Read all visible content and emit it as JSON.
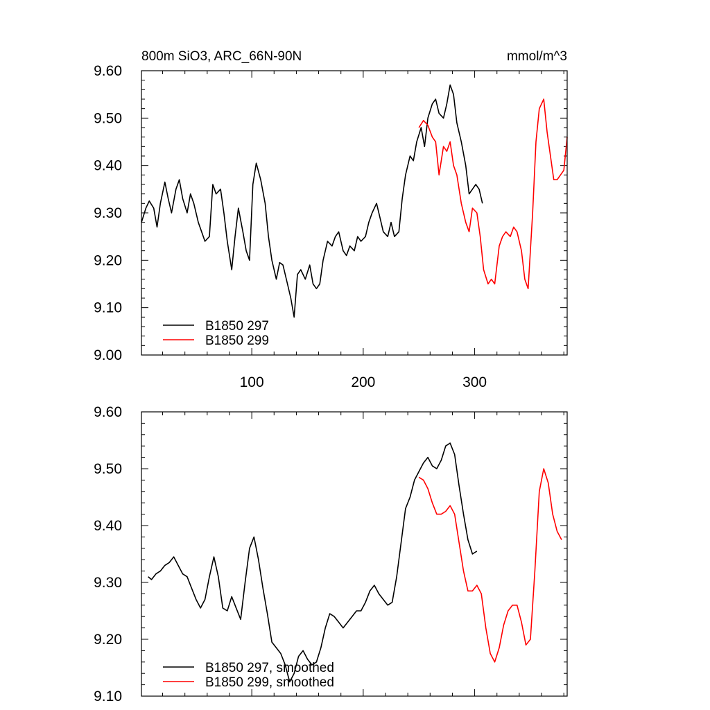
{
  "chart_data": [
    {
      "type": "line",
      "title": "800m SiO3, ARC_66N-90N",
      "units": "mmol/m^3",
      "xlim": [
        1,
        383
      ],
      "ylim": [
        9.0,
        9.6
      ],
      "x_ticks": [
        100,
        200,
        300
      ],
      "y_ticks": [
        "9.00",
        "9.10",
        "9.20",
        "9.30",
        "9.40",
        "9.50",
        "9.60"
      ],
      "legend_position": "bottom-left",
      "series": [
        {
          "name": "B1850 297",
          "color": "#000000",
          "x": [
            1,
            5,
            8,
            12,
            15,
            18,
            22,
            25,
            28,
            32,
            35,
            38,
            42,
            45,
            48,
            52,
            55,
            58,
            62,
            65,
            68,
            72,
            75,
            78,
            82,
            85,
            88,
            92,
            95,
            98,
            101,
            104,
            108,
            112,
            115,
            118,
            122,
            125,
            128,
            132,
            135,
            138,
            141,
            144,
            148,
            152,
            155,
            158,
            161,
            164,
            168,
            172,
            175,
            178,
            182,
            185,
            188,
            192,
            195,
            198,
            202,
            205,
            208,
            212,
            215,
            218,
            222,
            225,
            228,
            232,
            235,
            238,
            242,
            245,
            248,
            252,
            255,
            258,
            262,
            265,
            268,
            272,
            275,
            278,
            281,
            284,
            288,
            292,
            295,
            298,
            301,
            304,
            307
          ],
          "y": [
            9.28,
            9.31,
            9.325,
            9.31,
            9.27,
            9.32,
            9.365,
            9.33,
            9.3,
            9.35,
            9.37,
            9.33,
            9.3,
            9.34,
            9.32,
            9.28,
            9.26,
            9.24,
            9.25,
            9.36,
            9.34,
            9.35,
            9.3,
            9.24,
            9.18,
            9.25,
            9.31,
            9.26,
            9.22,
            9.2,
            9.36,
            9.405,
            9.37,
            9.32,
            9.25,
            9.2,
            9.16,
            9.195,
            9.19,
            9.15,
            9.12,
            9.08,
            9.17,
            9.18,
            9.16,
            9.19,
            9.15,
            9.14,
            9.15,
            9.2,
            9.24,
            9.23,
            9.25,
            9.26,
            9.22,
            9.21,
            9.23,
            9.22,
            9.25,
            9.24,
            9.25,
            9.28,
            9.3,
            9.32,
            9.29,
            9.26,
            9.25,
            9.28,
            9.25,
            9.26,
            9.33,
            9.38,
            9.42,
            9.41,
            9.45,
            9.48,
            9.44,
            9.5,
            9.53,
            9.54,
            9.51,
            9.5,
            9.53,
            9.57,
            9.55,
            9.49,
            9.45,
            9.4,
            9.34,
            9.35,
            9.36,
            9.35,
            9.32
          ]
        },
        {
          "name": "B1850 299",
          "color": "#ff0000",
          "x": [
            250,
            254,
            258,
            262,
            265,
            268,
            272,
            275,
            278,
            281,
            284,
            288,
            292,
            295,
            298,
            302,
            305,
            308,
            312,
            315,
            318,
            322,
            325,
            328,
            332,
            335,
            338,
            342,
            345,
            348,
            352,
            355,
            358,
            362,
            365,
            368,
            371,
            374,
            377,
            380,
            383
          ],
          "y": [
            9.48,
            9.495,
            9.485,
            9.46,
            9.45,
            9.38,
            9.44,
            9.43,
            9.45,
            9.4,
            9.38,
            9.32,
            9.28,
            9.26,
            9.31,
            9.3,
            9.25,
            9.18,
            9.15,
            9.16,
            9.15,
            9.23,
            9.25,
            9.26,
            9.25,
            9.27,
            9.26,
            9.22,
            9.16,
            9.14,
            9.3,
            9.45,
            9.52,
            9.54,
            9.47,
            9.42,
            9.37,
            9.37,
            9.38,
            9.39,
            9.46
          ]
        }
      ]
    },
    {
      "type": "line",
      "xlim": [
        1,
        383
      ],
      "ylim": [
        9.1,
        9.6
      ],
      "x_ticks": [
        100,
        200,
        300
      ],
      "y_ticks": [
        "9.10",
        "9.20",
        "9.30",
        "9.40",
        "9.50",
        "9.60"
      ],
      "legend_position": "bottom-left",
      "series": [
        {
          "name": "B1850 297, smoothed",
          "color": "#000000",
          "x": [
            7,
            10,
            14,
            18,
            22,
            26,
            30,
            34,
            38,
            42,
            46,
            50,
            54,
            58,
            62,
            66,
            70,
            74,
            78,
            82,
            86,
            90,
            94,
            98,
            102,
            106,
            110,
            114,
            118,
            122,
            126,
            130,
            134,
            138,
            142,
            146,
            150,
            154,
            158,
            162,
            166,
            170,
            174,
            178,
            182,
            186,
            190,
            194,
            198,
            202,
            206,
            210,
            214,
            218,
            222,
            226,
            230,
            234,
            238,
            242,
            246,
            250,
            254,
            258,
            262,
            266,
            270,
            274,
            278,
            282,
            286,
            290,
            294,
            298,
            302
          ],
          "y": [
            9.31,
            9.305,
            9.315,
            9.32,
            9.33,
            9.335,
            9.345,
            9.33,
            9.315,
            9.31,
            9.29,
            9.27,
            9.255,
            9.27,
            9.31,
            9.345,
            9.31,
            9.255,
            9.25,
            9.275,
            9.255,
            9.235,
            9.3,
            9.36,
            9.38,
            9.34,
            9.29,
            9.245,
            9.195,
            9.185,
            9.175,
            9.155,
            9.125,
            9.14,
            9.17,
            9.18,
            9.165,
            9.155,
            9.16,
            9.185,
            9.22,
            9.245,
            9.24,
            9.23,
            9.22,
            9.23,
            9.24,
            9.25,
            9.25,
            9.265,
            9.285,
            9.295,
            9.28,
            9.27,
            9.26,
            9.265,
            9.31,
            9.37,
            9.43,
            9.45,
            9.48,
            9.495,
            9.51,
            9.52,
            9.505,
            9.5,
            9.515,
            9.54,
            9.545,
            9.525,
            9.47,
            9.42,
            9.375,
            9.35,
            9.355
          ]
        },
        {
          "name": "B1850 299, smoothed",
          "color": "#ff0000",
          "x": [
            250,
            254,
            258,
            262,
            266,
            270,
            274,
            278,
            282,
            286,
            290,
            294,
            298,
            302,
            306,
            310,
            314,
            318,
            322,
            326,
            330,
            334,
            338,
            342,
            346,
            350,
            354,
            358,
            362,
            366,
            370,
            374,
            378
          ],
          "y": [
            9.485,
            9.48,
            9.465,
            9.44,
            9.42,
            9.42,
            9.425,
            9.435,
            9.42,
            9.37,
            9.32,
            9.285,
            9.285,
            9.295,
            9.28,
            9.22,
            9.175,
            9.16,
            9.185,
            9.225,
            9.25,
            9.26,
            9.26,
            9.23,
            9.19,
            9.2,
            9.32,
            9.46,
            9.5,
            9.475,
            9.42,
            9.39,
            9.375
          ]
        }
      ]
    }
  ]
}
